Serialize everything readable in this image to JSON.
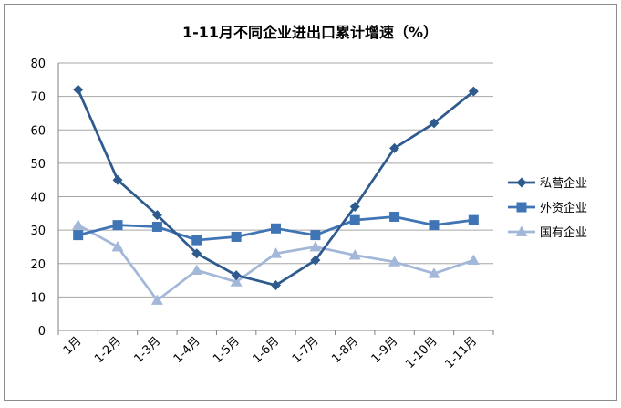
{
  "chart_data": {
    "type": "line",
    "title": "1-11月不同企业进出口累计增速（%）",
    "xlabel": "",
    "ylabel": "",
    "categories": [
      "1月",
      "1-2月",
      "1-3月",
      "1-4月",
      "1-5月",
      "1-6月",
      "1-7月",
      "1-8月",
      "1-9月",
      "1-10月",
      "1-11月"
    ],
    "ylim": [
      0,
      80
    ],
    "yticks": [
      "0",
      "10",
      "20",
      "30",
      "40",
      "50",
      "60",
      "70",
      "80"
    ],
    "grid": "horizontal",
    "legend_position": "right",
    "series": [
      {
        "name": "私营企业",
        "color": "#2E5A8E",
        "marker": "diamond",
        "values": [
          72,
          45,
          34.5,
          23,
          16.5,
          13.5,
          21,
          37,
          54.5,
          62,
          71.5
        ]
      },
      {
        "name": "外资企业",
        "color": "#3F74B5",
        "marker": "square",
        "values": [
          28.5,
          31.5,
          31,
          27,
          28,
          30.5,
          28.5,
          33,
          34,
          31.5,
          33
        ]
      },
      {
        "name": "国有企业",
        "color": "#A3B7D9",
        "marker": "triangle",
        "values": [
          31.5,
          25,
          9,
          18,
          14.5,
          23,
          25,
          22.5,
          20.5,
          17,
          21
        ]
      }
    ]
  }
}
